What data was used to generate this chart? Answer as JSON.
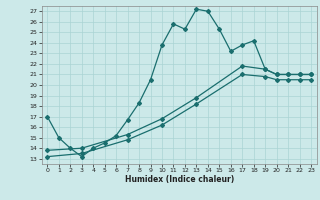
{
  "xlabel": "Humidex (Indice chaleur)",
  "ylabel": "",
  "background_color": "#cce9e9",
  "line_color": "#1a6e6e",
  "grid_color": "#aad4d4",
  "xlim": [
    -0.5,
    23.5
  ],
  "ylim": [
    12.5,
    27.5
  ],
  "xticks": [
    0,
    1,
    2,
    3,
    4,
    5,
    6,
    7,
    8,
    9,
    10,
    11,
    12,
    13,
    14,
    15,
    16,
    17,
    18,
    19,
    20,
    21,
    22,
    23
  ],
  "yticks": [
    13,
    14,
    15,
    16,
    17,
    18,
    19,
    20,
    21,
    22,
    23,
    24,
    25,
    26,
    27
  ],
  "series1_x": [
    0,
    1,
    2,
    3,
    4,
    5,
    6,
    7,
    8,
    9,
    10,
    11,
    12,
    13,
    14,
    15,
    16,
    17,
    18,
    19,
    20,
    21,
    22,
    23
  ],
  "series1_y": [
    17.0,
    15.0,
    14.0,
    13.2,
    14.0,
    14.5,
    15.2,
    16.7,
    18.3,
    20.5,
    23.8,
    25.8,
    25.3,
    27.2,
    27.0,
    25.3,
    23.2,
    23.8,
    24.2,
    21.5,
    21.0,
    21.0,
    21.0,
    21.0
  ],
  "series2_x": [
    0,
    3,
    7,
    10,
    13,
    17,
    19,
    20,
    21,
    22,
    23
  ],
  "series2_y": [
    13.8,
    14.0,
    15.3,
    16.8,
    18.8,
    21.8,
    21.5,
    21.0,
    21.0,
    21.0,
    21.0
  ],
  "series2_line_x": [
    0,
    23
  ],
  "series2_line_y": [
    13.5,
    21.2
  ],
  "series3_line_x": [
    0,
    23
  ],
  "series3_line_y": [
    13.0,
    20.5
  ],
  "marker_x_series2": [
    0,
    3,
    7,
    10,
    13,
    17,
    19,
    20,
    21,
    22,
    23
  ],
  "marker_y_series2": [
    13.8,
    14.0,
    15.3,
    16.8,
    18.8,
    21.8,
    21.5,
    21.0,
    21.0,
    21.0,
    21.0
  ],
  "marker_x_series3": [
    0,
    3,
    7,
    10,
    13,
    17,
    19,
    20,
    21,
    22,
    23
  ],
  "marker_y_series3": [
    13.2,
    13.5,
    14.8,
    16.2,
    18.2,
    21.0,
    20.8,
    20.5,
    20.5,
    20.5,
    20.5
  ]
}
